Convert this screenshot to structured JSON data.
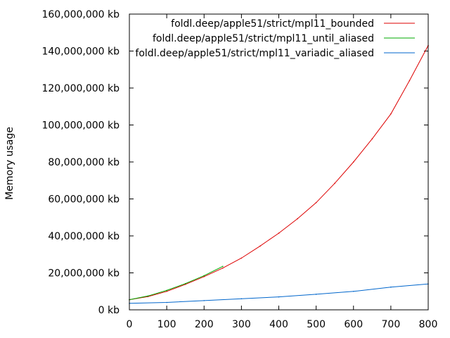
{
  "chart_data": {
    "type": "line",
    "title": "",
    "xlabel": "",
    "ylabel": "Memory usage",
    "xlim": [
      0,
      800
    ],
    "ylim": [
      0,
      160000000
    ],
    "grid": false,
    "legend_position": "top-right",
    "x_ticks": [
      {
        "value": 0,
        "label": "0"
      },
      {
        "value": 100,
        "label": "100"
      },
      {
        "value": 200,
        "label": "200"
      },
      {
        "value": 300,
        "label": "300"
      },
      {
        "value": 400,
        "label": "400"
      },
      {
        "value": 500,
        "label": "500"
      },
      {
        "value": 600,
        "label": "600"
      },
      {
        "value": 700,
        "label": "700"
      },
      {
        "value": 800,
        "label": "800"
      }
    ],
    "y_ticks": [
      {
        "value": 0,
        "label": "0 kb"
      },
      {
        "value": 20000000,
        "label": "20,000,000 kb"
      },
      {
        "value": 40000000,
        "label": "40,000,000 kb"
      },
      {
        "value": 60000000,
        "label": "60,000,000 kb"
      },
      {
        "value": 80000000,
        "label": "80,000,000 kb"
      },
      {
        "value": 100000000,
        "label": "100,000,000 kb"
      },
      {
        "value": 120000000,
        "label": "120,000,000 kb"
      },
      {
        "value": 140000000,
        "label": "140,000,000 kb"
      },
      {
        "value": 160000000,
        "label": "160,000,000 kb"
      }
    ],
    "series": [
      {
        "name": "foldl.deep/apple51/strict/mpl11_bounded",
        "color": "#dd0000",
        "x": [
          0,
          50,
          100,
          150,
          200,
          250,
          300,
          350,
          400,
          450,
          500,
          550,
          600,
          650,
          700,
          750,
          800
        ],
        "values": [
          5500000,
          7200000,
          10000000,
          13800000,
          18000000,
          22600000,
          28000000,
          34500000,
          41500000,
          49300000,
          58000000,
          68500000,
          80000000,
          92500000,
          106000000,
          124000000,
          143000000
        ]
      },
      {
        "name": "foldl.deep/apple51/strict/mpl11_until_aliased",
        "color": "#00aa00",
        "x": [
          0,
          50,
          100,
          150,
          200,
          250
        ],
        "values": [
          5500000,
          7500000,
          10500000,
          14200000,
          18500000,
          23500000
        ]
      },
      {
        "name": "foldl.deep/apple51/strict/mpl11_variadic_aliased",
        "color": "#0066cc",
        "x": [
          0,
          100,
          200,
          300,
          400,
          500,
          600,
          700,
          800
        ],
        "values": [
          3500000,
          4000000,
          5000000,
          6000000,
          7000000,
          8400000,
          10000000,
          12300000,
          14000000
        ]
      }
    ]
  }
}
